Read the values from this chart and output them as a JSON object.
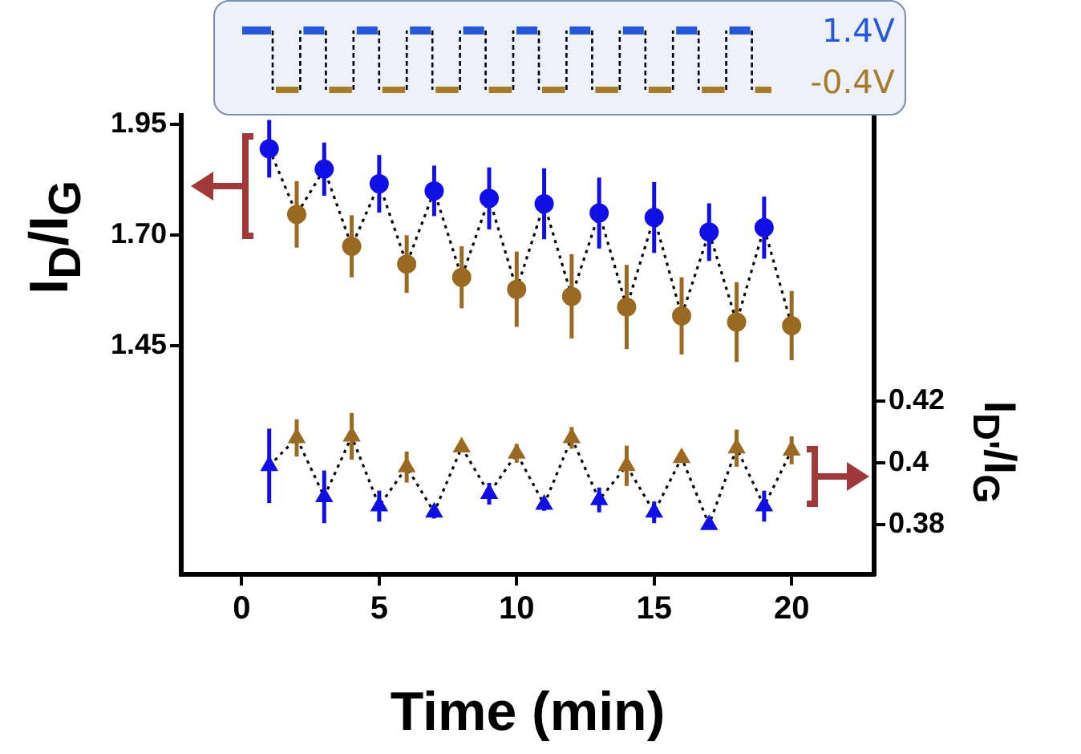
{
  "chart_data": {
    "type": "scatter",
    "xlabel": "Time (min)",
    "ylabel": "I$_{D}$/I$_{G}$",
    "y2label": "I$_{D'}$/I$_{G}$",
    "xlim": [
      -2.2,
      23
    ],
    "xticks": [
      0,
      5,
      10,
      15,
      20
    ],
    "ylim": [
      0.935,
      1.97
    ],
    "yticks": [
      1.95,
      {
        "value": 1.7,
        "label": "1.70"
      },
      1.45
    ],
    "y2lim": [
      0.364,
      0.512
    ],
    "y2ticks": [
      0.38,
      0.4,
      0.42
    ],
    "grid": false,
    "legend": false,
    "annotations": [
      "1.4V",
      "-0.4V"
    ],
    "series": [
      {
        "type": "line",
        "color": "#000000",
        "marker": "none",
        "line_style": "dotted",
        "x": [
          1,
          2,
          3,
          4,
          5,
          6,
          7,
          8,
          9,
          10,
          11,
          12,
          13,
          14,
          15,
          16,
          17,
          18,
          19,
          20
        ],
        "values": [
          1.895,
          1.747,
          1.849,
          1.675,
          1.816,
          1.635,
          1.8,
          1.605,
          1.783,
          1.578,
          1.771,
          1.562,
          1.75,
          1.538,
          1.74,
          1.518,
          1.707,
          1.504,
          1.717,
          1.496
        ]
      },
      {
        "type": "line",
        "axis": "y2",
        "color": "#000000",
        "marker": "none",
        "line_style": "dotted",
        "x": [
          1,
          2,
          3,
          4,
          5,
          6,
          7,
          8,
          9,
          10,
          11,
          12,
          13,
          14,
          15,
          16,
          17,
          18,
          19,
          20
        ],
        "values": [
          0.399,
          0.408,
          0.389,
          0.4085,
          0.386,
          0.3986,
          0.384,
          0.405,
          0.39,
          0.403,
          0.3865,
          0.408,
          0.388,
          0.399,
          0.384,
          0.4016,
          0.38,
          0.4047,
          0.386,
          0.404
        ]
      },
      {
        "color": "#1010e6",
        "marker": "circle",
        "x": [
          1,
          3,
          5,
          7,
          9,
          11,
          13,
          15,
          17,
          19
        ],
        "values": [
          1.895,
          1.849,
          1.816,
          1.8,
          1.783,
          1.771,
          1.75,
          1.74,
          1.707,
          1.717
        ],
        "errors": [
          0.065,
          0.06,
          0.065,
          0.057,
          0.07,
          0.08,
          0.08,
          0.08,
          0.065,
          0.07
        ]
      },
      {
        "color": "#9a6a22",
        "marker": "circle",
        "x": [
          2,
          4,
          6,
          8,
          10,
          12,
          14,
          16,
          18,
          20
        ],
        "values": [
          1.747,
          1.675,
          1.635,
          1.605,
          1.578,
          1.562,
          1.538,
          1.518,
          1.504,
          1.496
        ],
        "errors": [
          0.075,
          0.07,
          0.065,
          0.07,
          0.085,
          0.095,
          0.095,
          0.087,
          0.09,
          0.078
        ]
      },
      {
        "axis": "y2",
        "color": "#1010e6",
        "marker": "triangle",
        "x": [
          1,
          3,
          5,
          7,
          9,
          11,
          13,
          15,
          17,
          19
        ],
        "values": [
          0.399,
          0.389,
          0.386,
          0.384,
          0.39,
          0.3865,
          0.388,
          0.384,
          0.38,
          0.386
        ],
        "errors": [
          0.012,
          0.0085,
          0.005,
          0.002,
          0.0035,
          0.002,
          0.004,
          0.0035,
          0.001,
          0.005
        ]
      },
      {
        "axis": "y2",
        "color": "#9a6a22",
        "marker": "triangle",
        "x": [
          2,
          4,
          6,
          8,
          10,
          12,
          14,
          16,
          18,
          20
        ],
        "values": [
          0.408,
          0.4085,
          0.3986,
          0.405,
          0.403,
          0.408,
          0.399,
          0.4016,
          0.4047,
          0.404
        ],
        "errors": [
          0.006,
          0.0075,
          0.005,
          0.001,
          0.003,
          0.0035,
          0.0065,
          0.001,
          0.006,
          0.0045
        ]
      }
    ]
  }
}
